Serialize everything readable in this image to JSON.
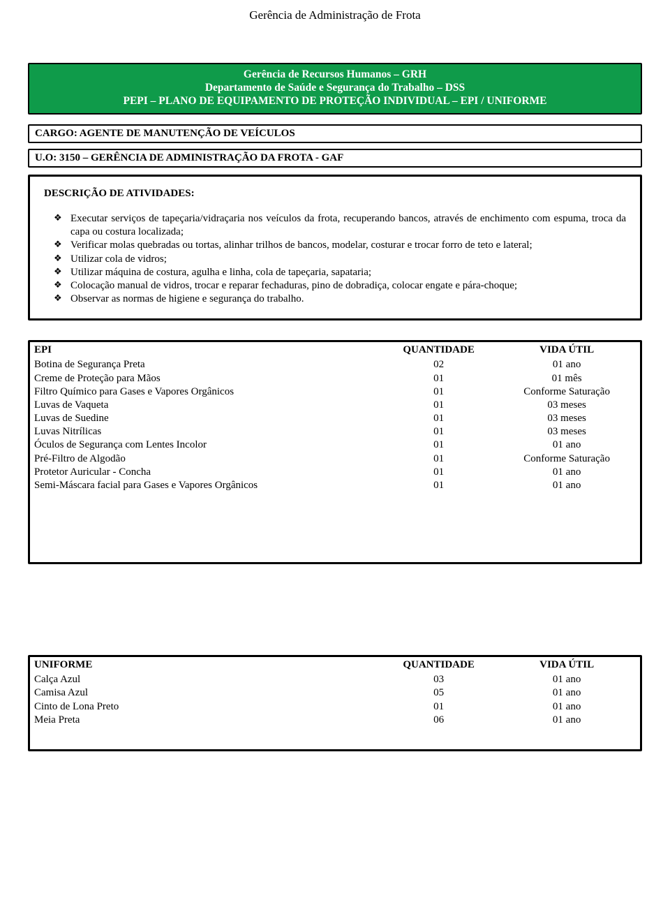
{
  "page_title": "Gerência de Administração de Frota",
  "header": {
    "line1": "Gerência de Recursos Humanos – GRH",
    "line2": "Departamento de Saúde e Segurança do Trabalho – DSS",
    "line3": "PEPI – PLANO DE EQUIPAMENTO DE PROTEÇÃO INDIVIDUAL – EPI / UNIFORME"
  },
  "cargo_label": "CARGO: AGENTE DE MANUTENÇÃO DE VEÍCULOS",
  "uo_label": "U.O: 3150 – GERÊNCIA DE ADMINISTRAÇÃO DA FROTA - GAF",
  "desc_heading": "DESCRIÇÃO DE ATIVIDADES:",
  "activities": [
    "Executar serviços de tapeçaria/vidraçaria nos veículos da frota, recuperando bancos, através de enchimento com espuma, troca da capa ou costura localizada;",
    "Verificar molas quebradas ou tortas, alinhar trilhos de bancos, modelar, costurar e trocar forro de teto e lateral;",
    "Utilizar cola de vidros;",
    "Utilizar máquina de costura, agulha e linha, cola de tapeçaria, sapataria;",
    "Colocação manual de vidros, trocar e reparar fechaduras, pino de dobradiça, colocar engate e pára-choque;",
    "Observar as normas de higiene e segurança do trabalho."
  ],
  "epi_table": {
    "headers": {
      "name": "EPI",
      "qty": "QUANTIDADE",
      "life": "VIDA ÚTIL"
    },
    "rows": [
      {
        "name": "Botina de Segurança Preta",
        "qty": "02",
        "life": "01 ano"
      },
      {
        "name": "Creme de Proteção para Mãos",
        "qty": "01",
        "life": "01 mês"
      },
      {
        "name": "Filtro Químico para Gases e Vapores Orgânicos",
        "qty": "01",
        "life": "Conforme Saturação"
      },
      {
        "name": "Luvas de Vaqueta",
        "qty": "01",
        "life": "03 meses"
      },
      {
        "name": "Luvas de Suedine",
        "qty": "01",
        "life": "03 meses"
      },
      {
        "name": "Luvas Nitrílicas",
        "qty": "01",
        "life": "03 meses"
      },
      {
        "name": "Óculos de Segurança com Lentes Incolor",
        "qty": "01",
        "life": "01 ano"
      },
      {
        "name": "Pré-Filtro de Algodão",
        "qty": "01",
        "life": "Conforme Saturação"
      },
      {
        "name": "Protetor Auricular - Concha",
        "qty": "01",
        "life": "01 ano"
      },
      {
        "name": "Semi-Máscara facial para Gases e Vapores Orgânicos",
        "qty": "01",
        "life": "01 ano"
      }
    ]
  },
  "uniforme_table": {
    "headers": {
      "name": "UNIFORME",
      "qty": "QUANTIDADE",
      "life": "VIDA ÚTIL"
    },
    "rows": [
      {
        "name": "Calça Azul",
        "qty": "03",
        "life": "01 ano"
      },
      {
        "name": "Camisa Azul",
        "qty": "05",
        "life": "01 ano"
      },
      {
        "name": "Cinto de Lona Preto",
        "qty": "01",
        "life": "01 ano"
      },
      {
        "name": "Meia Preta",
        "qty": "06",
        "life": "01 ano"
      }
    ]
  }
}
